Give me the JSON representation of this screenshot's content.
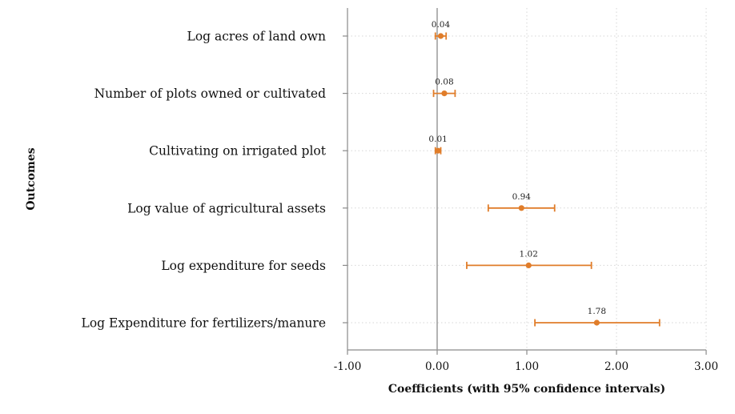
{
  "chart_data": {
    "type": "scatter",
    "orientation": "horizontal",
    "title": "",
    "xlabel": "Coefficients (with 95% confidence intervals)",
    "ylabel": "Outcomes",
    "xlim": [
      -1.0,
      3.0
    ],
    "xticks": [
      -1.0,
      0.0,
      1.0,
      2.0,
      3.0
    ],
    "xtick_labels": [
      "-1.00",
      "0.00",
      "1.00",
      "2.00",
      "3.00"
    ],
    "grid": true,
    "reference_line_x": 0,
    "color": "#e07d2a",
    "categories": [
      "Log acres of land own",
      "Number of plots owned or cultivated",
      "Cultivating on irrigated plot",
      "Log value of agricultural assets",
      "Log expenditure for seeds",
      "Log Expenditure for fertilizers/manure"
    ],
    "values": [
      0.04,
      0.08,
      0.01,
      0.94,
      1.02,
      1.78
    ],
    "value_labels": [
      "0.04",
      "0.08",
      "0.01",
      "0.94",
      "1.02",
      "1.78"
    ],
    "ci_lower": [
      -0.02,
      -0.04,
      -0.02,
      0.57,
      0.33,
      1.09
    ],
    "ci_upper": [
      0.1,
      0.2,
      0.04,
      1.31,
      1.72,
      2.48
    ]
  }
}
